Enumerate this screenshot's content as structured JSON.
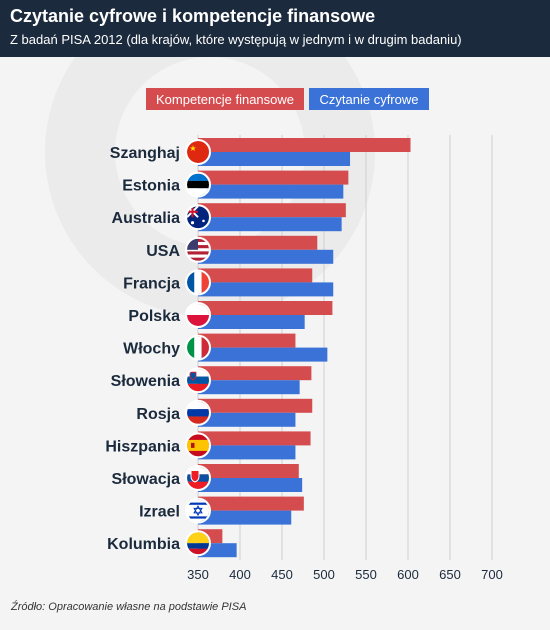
{
  "header": {
    "title": "Czytanie cyfrowe i kompetencje finansowe",
    "subtitle": "Z badań PISA 2012 (dla krajów, które występują w jednym i w drugim badaniu)"
  },
  "source": "Źródło: Opracowanie własne na podstawie PISA",
  "colors": {
    "header_bg": "#1b2a3d",
    "financial": "#d54c4f",
    "digital": "#3a72d8",
    "background": "#f4f4f4"
  },
  "chart_data": {
    "type": "bar",
    "orientation": "horizontal",
    "title": "Czytanie cyfrowe i kompetencje finansowe",
    "subtitle": "Z badań PISA 2012 (dla krajów, które występują w jednym i w drugim badaniu)",
    "categories": [
      "Szanghaj",
      "Estonia",
      "Australia",
      "USA",
      "Francja",
      "Polska",
      "Włochy",
      "Słowenia",
      "Rosja",
      "Hiszpania",
      "Słowacja",
      "Izrael",
      "Kolumbia"
    ],
    "category_icons": [
      "flag-china-icon",
      "flag-estonia-icon",
      "flag-australia-icon",
      "flag-usa-icon",
      "flag-france-icon",
      "flag-poland-icon",
      "flag-italy-icon",
      "flag-slovenia-icon",
      "flag-russia-icon",
      "flag-spain-icon",
      "flag-slovakia-icon",
      "flag-israel-icon",
      "flag-colombia-icon"
    ],
    "series": [
      {
        "name": "Kompetencje finansowe",
        "color": "#d54c4f",
        "values": [
          603,
          529,
          526,
          492,
          486,
          510,
          466,
          485,
          486,
          484,
          470,
          476,
          379
        ]
      },
      {
        "name": "Czytanie cyfrowe",
        "color": "#3a72d8",
        "values": [
          531,
          523,
          521,
          511,
          511,
          477,
          504,
          471,
          466,
          466,
          474,
          461,
          396
        ]
      }
    ],
    "xticks": [
      350,
      400,
      450,
      500,
      550,
      600,
      650,
      700
    ],
    "xlim": [
      350,
      700
    ],
    "legend": "top",
    "grid": "vertical"
  }
}
